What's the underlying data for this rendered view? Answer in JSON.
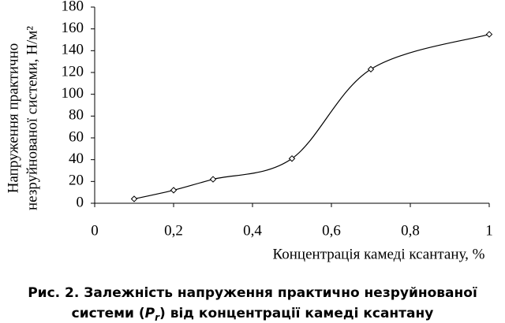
{
  "chart_data": {
    "type": "line",
    "x": [
      0.1,
      0.2,
      0.3,
      0.5,
      0.7,
      1.0
    ],
    "values": [
      4,
      12,
      22,
      41,
      123,
      155
    ],
    "color": "#000000",
    "xlim": [
      0,
      1
    ],
    "ylim": [
      0,
      180
    ],
    "xticks": [
      0,
      {
        "value": 0.2,
        "label": "0,2"
      },
      {
        "value": 0.4,
        "label": "0,4"
      },
      {
        "value": 0.6,
        "label": "0,6"
      },
      {
        "value": 0.8,
        "label": "0,8"
      },
      1
    ],
    "yticks": [
      0,
      20,
      40,
      60,
      80,
      100,
      120,
      140,
      160,
      180
    ],
    "xlabel": "Концентрація камеді ксантану, %",
    "ylabel": [
      "Напруження практично",
      "незруйнованої системи, Н/м²"
    ],
    "caption": [
      "Рис. 2. Залежність напруження практично незруйнованої",
      "системи (",
      "P",
      "r",
      ") від концентрації камеді ксантану"
    ]
  }
}
